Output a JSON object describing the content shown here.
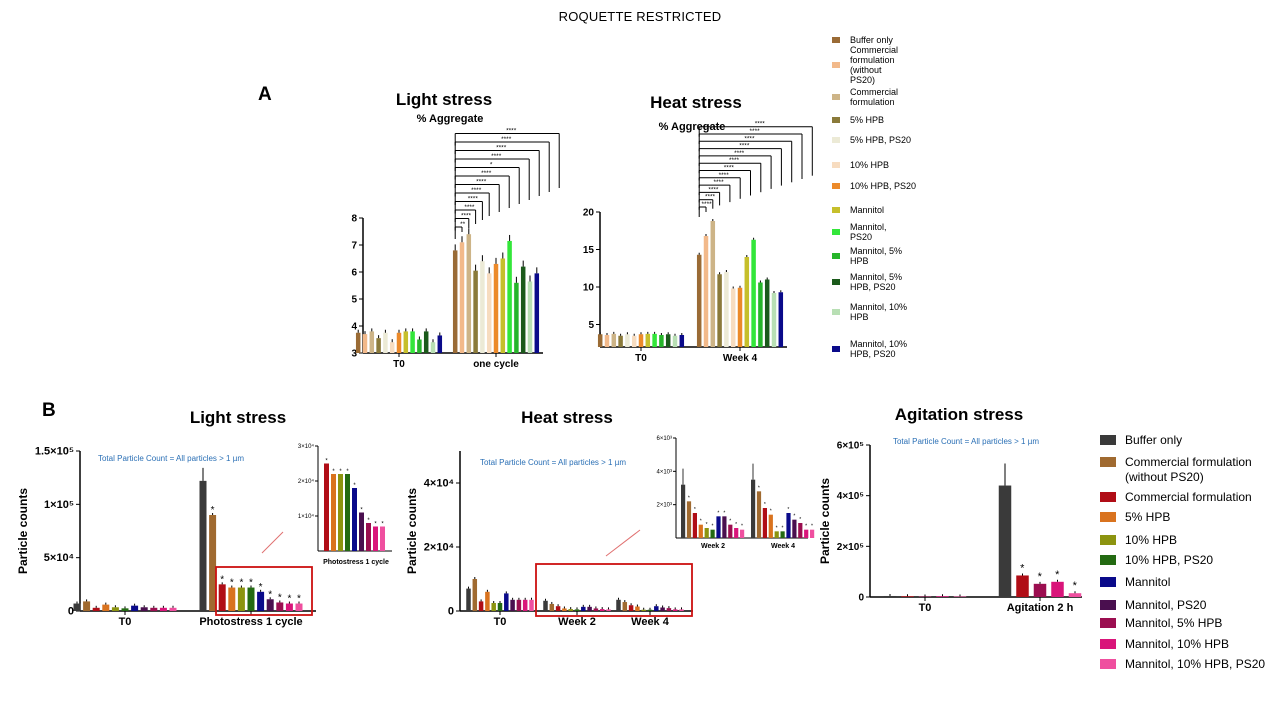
{
  "header": {
    "text": "ROQUETTE RESTRICTED"
  },
  "panel_labels": {
    "a": "A",
    "b": "B"
  },
  "colors": {
    "panel_a": [
      "#9a6b35",
      "#f2b98a",
      "#cdb487",
      "#8a7a3a",
      "#ecead6",
      "#f7dcc0",
      "#ec8a2a",
      "#c6bf2b",
      "#33e63a",
      "#26b52a",
      "#1b5a1b",
      "#b8dfb4",
      "#0a0a8a"
    ],
    "panel_b": [
      "#3a3a3a",
      "#a06a30",
      "#b00d16",
      "#d9731f",
      "#8c9410",
      "#236a12",
      "#0a0a8a",
      "#4a0f4f",
      "#9b0e50",
      "#d9157a",
      "#ef4f9f"
    ],
    "inset_box": "#cc1111",
    "note_text": "#2a6fb5"
  },
  "legend_a": {
    "items": [
      "Buffer only",
      "Commercial formulation (without PS20)",
      "Commercial formulation",
      "5% HPB",
      "5% HPB, PS20",
      "10% HPB",
      "10% HPB, PS20",
      "Mannitol",
      "Mannitol, PS20",
      "Mannitol, 5% HPB",
      "Mannitol, 5% HPB, PS20",
      "Mannitol, 10% HPB",
      "Mannitol, 10% HPB, PS20"
    ]
  },
  "legend_b": {
    "items": [
      "Buffer only",
      "Commercial formulation (without PS20)",
      "Commercial formulation",
      "5% HPB",
      "10% HPB",
      "10% HPB, PS20",
      "Mannitol",
      "Mannitol, PS20",
      "Mannitol, 5% HPB",
      "Mannitol, 10% HPB",
      "Mannitol, 10% HPB, PS20"
    ]
  },
  "chart_data": [
    {
      "id": "A-light",
      "type": "bar",
      "title": "Light stress",
      "subtitle": "% Aggregate",
      "categories": [
        "T0",
        "one cycle"
      ],
      "ylim": [
        3,
        8
      ],
      "yticks": [
        "3",
        "4",
        "5",
        "6",
        "7",
        "8"
      ],
      "series": [
        {
          "name": "Buffer only",
          "values": [
            3.75,
            6.8
          ]
        },
        {
          "name": "Commercial formulation (without PS20)",
          "values": [
            3.7,
            7.1
          ]
        },
        {
          "name": "Commercial formulation",
          "values": [
            3.8,
            7.4
          ]
        },
        {
          "name": "5% HPB",
          "values": [
            3.55,
            6.05
          ]
        },
        {
          "name": "5% HPB, PS20",
          "values": [
            3.75,
            6.4
          ]
        },
        {
          "name": "10% HPB",
          "values": [
            3.4,
            5.95
          ]
        },
        {
          "name": "10% HPB, PS20",
          "values": [
            3.75,
            6.3
          ]
        },
        {
          "name": "Mannitol",
          "values": [
            3.8,
            6.5
          ]
        },
        {
          "name": "Mannitol, PS20",
          "values": [
            3.8,
            7.15
          ]
        },
        {
          "name": "Mannitol, 5% HPB",
          "values": [
            3.5,
            5.6
          ]
        },
        {
          "name": "Mannitol, 5% HPB, PS20",
          "values": [
            3.8,
            6.2
          ]
        },
        {
          "name": "Mannitol, 10% HPB",
          "values": [
            3.4,
            5.65
          ]
        },
        {
          "name": "Mannitol, 10% HPB, PS20",
          "values": [
            3.65,
            5.95
          ]
        }
      ],
      "significance": [
        "**",
        "****",
        "****",
        "****",
        "****",
        "****",
        "****",
        "*",
        "****",
        "****",
        "****",
        "****"
      ]
    },
    {
      "id": "A-heat",
      "type": "bar",
      "title": "Heat stress",
      "subtitle": "% Aggregate",
      "categories": [
        "T0",
        "Week 4"
      ],
      "ylim": [
        2,
        20
      ],
      "yticks": [
        "5",
        "10",
        "15",
        "20"
      ],
      "series": [
        {
          "name": "Buffer only",
          "values": [
            3.7,
            14.3
          ]
        },
        {
          "name": "Commercial formulation (without PS20)",
          "values": [
            3.6,
            16.8
          ]
        },
        {
          "name": "Commercial formulation",
          "values": [
            3.75,
            18.8
          ]
        },
        {
          "name": "5% HPB",
          "values": [
            3.5,
            11.7
          ]
        },
        {
          "name": "5% HPB, PS20",
          "values": [
            3.7,
            12.0
          ]
        },
        {
          "name": "10% HPB",
          "values": [
            3.5,
            9.8
          ]
        },
        {
          "name": "10% HPB, PS20",
          "values": [
            3.7,
            9.9
          ]
        },
        {
          "name": "Mannitol",
          "values": [
            3.75,
            14.0
          ]
        },
        {
          "name": "Mannitol, PS20",
          "values": [
            3.75,
            16.3
          ]
        },
        {
          "name": "Mannitol, 5% HPB",
          "values": [
            3.6,
            10.6
          ]
        },
        {
          "name": "Mannitol, 5% HPB, PS20",
          "values": [
            3.7,
            11.0
          ]
        },
        {
          "name": "Mannitol, 10% HPB",
          "values": [
            3.5,
            9.2
          ]
        },
        {
          "name": "Mannitol, 10% HPB, PS20",
          "values": [
            3.6,
            9.3
          ]
        }
      ],
      "significance": [
        "****",
        "****",
        "****",
        "****",
        "****",
        "****",
        "****",
        "****",
        "****",
        "****",
        "****",
        "****"
      ]
    },
    {
      "id": "B-light",
      "type": "bar",
      "title": "Light stress",
      "note": "Total Particle Count = All particles > 1 µm",
      "ylabel": "Particle counts",
      "categories": [
        "T0",
        "Photostress 1 cycle"
      ],
      "ylim": [
        0,
        150000
      ],
      "yticks": [
        "0",
        "5×10⁴",
        "1×10⁵",
        "1.5×10⁵"
      ],
      "series": [
        {
          "name": "Buffer only",
          "values": [
            7000,
            122000
          ]
        },
        {
          "name": "Commercial formulation (without PS20)",
          "values": [
            9000,
            90000
          ]
        },
        {
          "name": "Commercial formulation",
          "values": [
            3000,
            25000
          ]
        },
        {
          "name": "5% HPB",
          "values": [
            6000,
            22000
          ]
        },
        {
          "name": "10% HPB",
          "values": [
            3500,
            22000
          ]
        },
        {
          "name": "10% HPB, PS20",
          "values": [
            2500,
            22000
          ]
        },
        {
          "name": "Mannitol",
          "values": [
            5000,
            18000
          ]
        },
        {
          "name": "Mannitol, PS20",
          "values": [
            3500,
            11000
          ]
        },
        {
          "name": "Mannitol, 5% HPB",
          "values": [
            3000,
            8000
          ]
        },
        {
          "name": "Mannitol, 10% HPB",
          "values": [
            3000,
            7000
          ]
        },
        {
          "name": "Mannitol, 10% HPB, PS20",
          "values": [
            3000,
            7000
          ]
        }
      ],
      "inset": {
        "category": "Photostress 1 cycle",
        "ylim": [
          0,
          30000
        ],
        "yticks": [
          "1×10⁴",
          "2×10⁴",
          "3×10⁴"
        ],
        "values": [
          25000,
          22000,
          22000,
          22000,
          18000,
          11000,
          8000,
          7000,
          7000
        ]
      }
    },
    {
      "id": "B-heat",
      "type": "bar",
      "title": "Heat stress",
      "note": "Total Particle Count = All particles > 1 µm",
      "ylabel": "Particle counts",
      "categories": [
        "T0",
        "Week 2",
        "Week 4"
      ],
      "ylim": [
        0,
        50000
      ],
      "yticks": [
        "0",
        "2×10⁴",
        "4×10⁴"
      ],
      "series": [
        {
          "name": "Buffer only",
          "values": [
            7000,
            3200,
            3500
          ]
        },
        {
          "name": "Commercial formulation (without PS20)",
          "values": [
            10000,
            2200,
            2800
          ]
        },
        {
          "name": "Commercial formulation",
          "values": [
            3000,
            1500,
            1800
          ]
        },
        {
          "name": "5% HPB",
          "values": [
            6000,
            800,
            1400
          ]
        },
        {
          "name": "10% HPB",
          "values": [
            2500,
            600,
            400
          ]
        },
        {
          "name": "10% HPB, PS20",
          "values": [
            2500,
            500,
            400
          ]
        },
        {
          "name": "Mannitol",
          "values": [
            5500,
            1300,
            1500
          ]
        },
        {
          "name": "Mannitol, PS20",
          "values": [
            3500,
            1300,
            1100
          ]
        },
        {
          "name": "Mannitol, 5% HPB",
          "values": [
            3500,
            800,
            900
          ]
        },
        {
          "name": "Mannitol, 10% HPB",
          "values": [
            3500,
            600,
            500
          ]
        },
        {
          "name": "Mannitol, 10% HPB, PS20",
          "values": [
            3500,
            500,
            500
          ]
        }
      ],
      "inset": {
        "categories": [
          "Week 2",
          "Week 4"
        ],
        "ylim": [
          0,
          6000
        ],
        "yticks": [
          "2×10³",
          "4×10³",
          "6×10³"
        ]
      }
    },
    {
      "id": "B-agitation",
      "type": "bar",
      "title": "Agitation stress",
      "note": "Total Particle Count = All particles > 1 µm",
      "ylabel": "Particle counts",
      "categories": [
        "T0",
        "Agitation 2 h"
      ],
      "ylim": [
        0,
        600000
      ],
      "yticks": [
        "0",
        "2×10⁵",
        "4×10⁵",
        "6×10⁵"
      ],
      "series": [
        {
          "name": "Buffer only",
          "values": [
            4000,
            440000
          ]
        },
        {
          "name": "Commercial formulation",
          "values": [
            3000,
            85000
          ]
        },
        {
          "name": "Mannitol, 5% HPB",
          "values": [
            2000,
            52000
          ]
        },
        {
          "name": "Mannitol, 10% HPB",
          "values": [
            3000,
            60000
          ]
        },
        {
          "name": "Mannitol, 10% HPB, PS20",
          "values": [
            2000,
            15000
          ]
        }
      ]
    }
  ]
}
